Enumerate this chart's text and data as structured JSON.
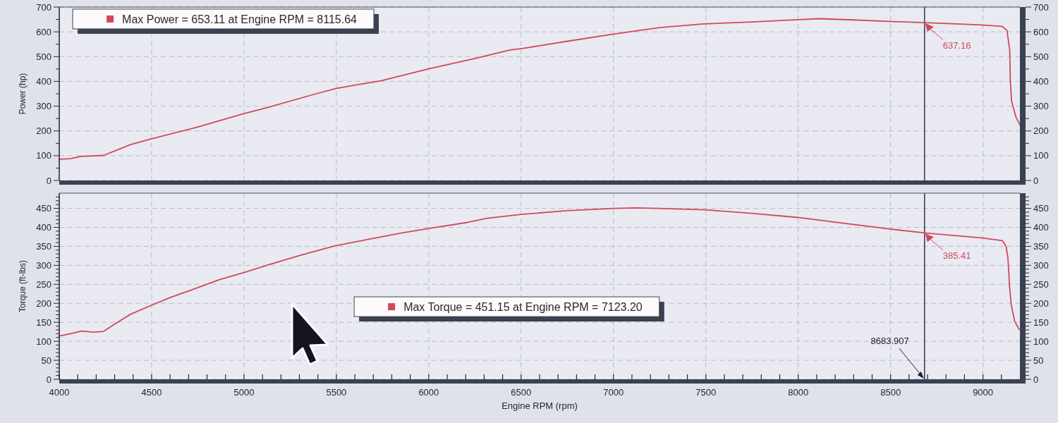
{
  "chart_data": [
    {
      "type": "line",
      "ylabel": "Power (hp)",
      "x": [
        4000,
        4060,
        4115,
        4240,
        4385,
        4500,
        4740,
        5000,
        5115,
        5390,
        5500,
        5745,
        6000,
        6260,
        6440,
        6510,
        6750,
        7000,
        7250,
        7490,
        7750,
        8000,
        8115.64,
        8300,
        8490,
        8683.907,
        8830,
        8990,
        9105,
        9130,
        9145,
        9148,
        9155,
        9178,
        9200
      ],
      "series": [
        {
          "color": "#d04a5a",
          "values": [
            86,
            88,
            97,
            101,
            145,
            168,
            214,
            270,
            292,
            350,
            372,
            403,
            451,
            494,
            527,
            533,
            562,
            591,
            617,
            632,
            640,
            649,
            653.11,
            648,
            642,
            637.16,
            633,
            628,
            622,
            605,
            525,
            403,
            320,
            257,
            224
          ]
        }
      ],
      "xlim": [
        4000,
        9200
      ],
      "xticks": [
        4000,
        4500,
        5000,
        5500,
        6000,
        6500,
        7000,
        7500,
        8000,
        8500,
        9000
      ],
      "ylim": [
        0,
        700
      ],
      "yticks": [
        0,
        {
          "value": 50,
          "label": null
        },
        100,
        {
          "value": 150,
          "label": null
        },
        200,
        {
          "value": 250,
          "label": null
        },
        300,
        {
          "value": 350,
          "label": null
        },
        400,
        {
          "value": 450,
          "label": null
        },
        500,
        {
          "value": 550,
          "label": null
        },
        600,
        {
          "value": 650,
          "label": null
        },
        700
      ],
      "y2lim": [
        0,
        700
      ],
      "y2ticks": [
        0,
        {
          "value": 50,
          "label": null
        },
        100,
        {
          "value": 150,
          "label": null
        },
        200,
        {
          "value": 250,
          "label": null
        },
        300,
        {
          "value": 350,
          "label": null
        },
        400,
        {
          "value": 450,
          "label": null
        },
        500,
        {
          "value": 550,
          "label": null
        },
        600,
        {
          "value": 650,
          "label": null
        },
        700
      ],
      "tick_labels": "y",
      "grid": true,
      "ref_lines": [
        {
          "axis": "x",
          "value": 8683.907,
          "color": "#1c1c28"
        }
      ],
      "annotations": [
        "Max Power = 653.11 at Engine RPM = 8115.64",
        {
          "text": "637.16",
          "x": 8683.907,
          "y": 637.16
        }
      ]
    },
    {
      "type": "line",
      "xlabel": "Engine RPM (rpm)",
      "ylabel": "Torque (ft-lbs)",
      "x": [
        4000,
        4060,
        4120,
        4185,
        4240,
        4295,
        4385,
        4490,
        4600,
        4725,
        4870,
        5000,
        5135,
        5315,
        5490,
        5670,
        5850,
        6010,
        6210,
        6315,
        6500,
        6745,
        7000,
        7123.2,
        7250,
        7500,
        7750,
        8000,
        8245,
        8490,
        8683.907,
        8880,
        9000,
        9105,
        9125,
        9135,
        9140,
        9143,
        9153,
        9172,
        9196
      ],
      "series": [
        {
          "color": "#d04a5a",
          "values": [
            114,
            120,
            127,
            124,
            126,
            144,
            171,
            193,
            215,
            237,
            263,
            281,
            302,
            328,
            351,
            368,
            385,
            398,
            413,
            424,
            434,
            444,
            450,
            451.15,
            450,
            446,
            437,
            426,
            411,
            396,
            385.41,
            377,
            372,
            365,
            350,
            320,
            280,
            250,
            196,
            152,
            131
          ]
        }
      ],
      "xlim": [
        4000,
        9200
      ],
      "xticks": [
        4000,
        {
          "value": 4100,
          "label": null
        },
        {
          "value": 4200,
          "label": null
        },
        {
          "value": 4300,
          "label": null
        },
        {
          "value": 4400,
          "label": null
        },
        4500,
        {
          "value": 4600,
          "label": null
        },
        {
          "value": 4700,
          "label": null
        },
        {
          "value": 4800,
          "label": null
        },
        {
          "value": 4900,
          "label": null
        },
        5000,
        {
          "value": 5100,
          "label": null
        },
        {
          "value": 5200,
          "label": null
        },
        {
          "value": 5300,
          "label": null
        },
        {
          "value": 5400,
          "label": null
        },
        5500,
        {
          "value": 5600,
          "label": null
        },
        {
          "value": 5700,
          "label": null
        },
        {
          "value": 5800,
          "label": null
        },
        {
          "value": 5900,
          "label": null
        },
        6000,
        {
          "value": 6100,
          "label": null
        },
        {
          "value": 6200,
          "label": null
        },
        {
          "value": 6300,
          "label": null
        },
        {
          "value": 6400,
          "label": null
        },
        6500,
        {
          "value": 6600,
          "label": null
        },
        {
          "value": 6700,
          "label": null
        },
        {
          "value": 6800,
          "label": null
        },
        {
          "value": 6900,
          "label": null
        },
        7000,
        {
          "value": 7100,
          "label": null
        },
        {
          "value": 7200,
          "label": null
        },
        {
          "value": 7300,
          "label": null
        },
        {
          "value": 7400,
          "label": null
        },
        7500,
        {
          "value": 7600,
          "label": null
        },
        {
          "value": 7700,
          "label": null
        },
        {
          "value": 7800,
          "label": null
        },
        {
          "value": 7900,
          "label": null
        },
        8000,
        {
          "value": 8100,
          "label": null
        },
        {
          "value": 8200,
          "label": null
        },
        {
          "value": 8300,
          "label": null
        },
        {
          "value": 8400,
          "label": null
        },
        8500,
        {
          "value": 8600,
          "label": null
        },
        {
          "value": 8700,
          "label": null
        },
        {
          "value": 8800,
          "label": null
        },
        {
          "value": 8900,
          "label": null
        },
        9000,
        {
          "value": 9100,
          "label": null
        }
      ],
      "ylim": [
        0,
        490
      ],
      "yticks": [
        0,
        {
          "value": 10,
          "label": null
        },
        {
          "value": 20,
          "label": null
        },
        {
          "value": 30,
          "label": null
        },
        {
          "value": 40,
          "label": null
        },
        50,
        {
          "value": 60,
          "label": null
        },
        {
          "value": 70,
          "label": null
        },
        {
          "value": 80,
          "label": null
        },
        {
          "value": 90,
          "label": null
        },
        100,
        {
          "value": 110,
          "label": null
        },
        {
          "value": 120,
          "label": null
        },
        {
          "value": 130,
          "label": null
        },
        {
          "value": 140,
          "label": null
        },
        150,
        {
          "value": 160,
          "label": null
        },
        {
          "value": 170,
          "label": null
        },
        {
          "value": 180,
          "label": null
        },
        {
          "value": 190,
          "label": null
        },
        200,
        {
          "value": 210,
          "label": null
        },
        {
          "value": 220,
          "label": null
        },
        {
          "value": 230,
          "label": null
        },
        {
          "value": 240,
          "label": null
        },
        250,
        {
          "value": 260,
          "label": null
        },
        {
          "value": 270,
          "label": null
        },
        {
          "value": 280,
          "label": null
        },
        {
          "value": 290,
          "label": null
        },
        300,
        {
          "value": 310,
          "label": null
        },
        {
          "value": 320,
          "label": null
        },
        {
          "value": 330,
          "label": null
        },
        {
          "value": 340,
          "label": null
        },
        350,
        {
          "value": 360,
          "label": null
        },
        {
          "value": 370,
          "label": null
        },
        {
          "value": 380,
          "label": null
        },
        {
          "value": 390,
          "label": null
        },
        400,
        {
          "value": 410,
          "label": null
        },
        {
          "value": 420,
          "label": null
        },
        {
          "value": 430,
          "label": null
        },
        {
          "value": 440,
          "label": null
        },
        450,
        {
          "value": 460,
          "label": null
        },
        {
          "value": 470,
          "label": null
        },
        {
          "value": 480,
          "label": null
        }
      ],
      "y2lim": [
        0,
        490
      ],
      "y2ticks": [
        0,
        {
          "value": 10,
          "label": null
        },
        {
          "value": 20,
          "label": null
        },
        {
          "value": 30,
          "label": null
        },
        {
          "value": 40,
          "label": null
        },
        50,
        {
          "value": 60,
          "label": null
        },
        {
          "value": 70,
          "label": null
        },
        {
          "value": 80,
          "label": null
        },
        {
          "value": 90,
          "label": null
        },
        100,
        {
          "value": 110,
          "label": null
        },
        {
          "value": 120,
          "label": null
        },
        {
          "value": 130,
          "label": null
        },
        {
          "value": 140,
          "label": null
        },
        150,
        {
          "value": 160,
          "label": null
        },
        {
          "value": 170,
          "label": null
        },
        {
          "value": 180,
          "label": null
        },
        {
          "value": 190,
          "label": null
        },
        200,
        {
          "value": 210,
          "label": null
        },
        {
          "value": 220,
          "label": null
        },
        {
          "value": 230,
          "label": null
        },
        {
          "value": 240,
          "label": null
        },
        250,
        {
          "value": 260,
          "label": null
        },
        {
          "value": 270,
          "label": null
        },
        {
          "value": 280,
          "label": null
        },
        {
          "value": 290,
          "label": null
        },
        300,
        {
          "value": 310,
          "label": null
        },
        {
          "value": 320,
          "label": null
        },
        {
          "value": 330,
          "label": null
        },
        {
          "value": 340,
          "label": null
        },
        350,
        {
          "value": 360,
          "label": null
        },
        {
          "value": 370,
          "label": null
        },
        {
          "value": 380,
          "label": null
        },
        {
          "value": 390,
          "label": null
        },
        400,
        {
          "value": 410,
          "label": null
        },
        {
          "value": 420,
          "label": null
        },
        {
          "value": 430,
          "label": null
        },
        {
          "value": 440,
          "label": null
        },
        450,
        {
          "value": 460,
          "label": null
        },
        {
          "value": 470,
          "label": null
        },
        {
          "value": 480,
          "label": null
        }
      ],
      "grid": true,
      "ref_lines": [
        {
          "axis": "x",
          "value": 8683.907,
          "label": "8683.907",
          "color": "#1c1c28"
        }
      ],
      "annotations": [
        "Max Torque = 451.15 at Engine RPM = 7123.20",
        {
          "text": "385.41",
          "x": 8683.907,
          "y": 385.41
        }
      ]
    }
  ]
}
